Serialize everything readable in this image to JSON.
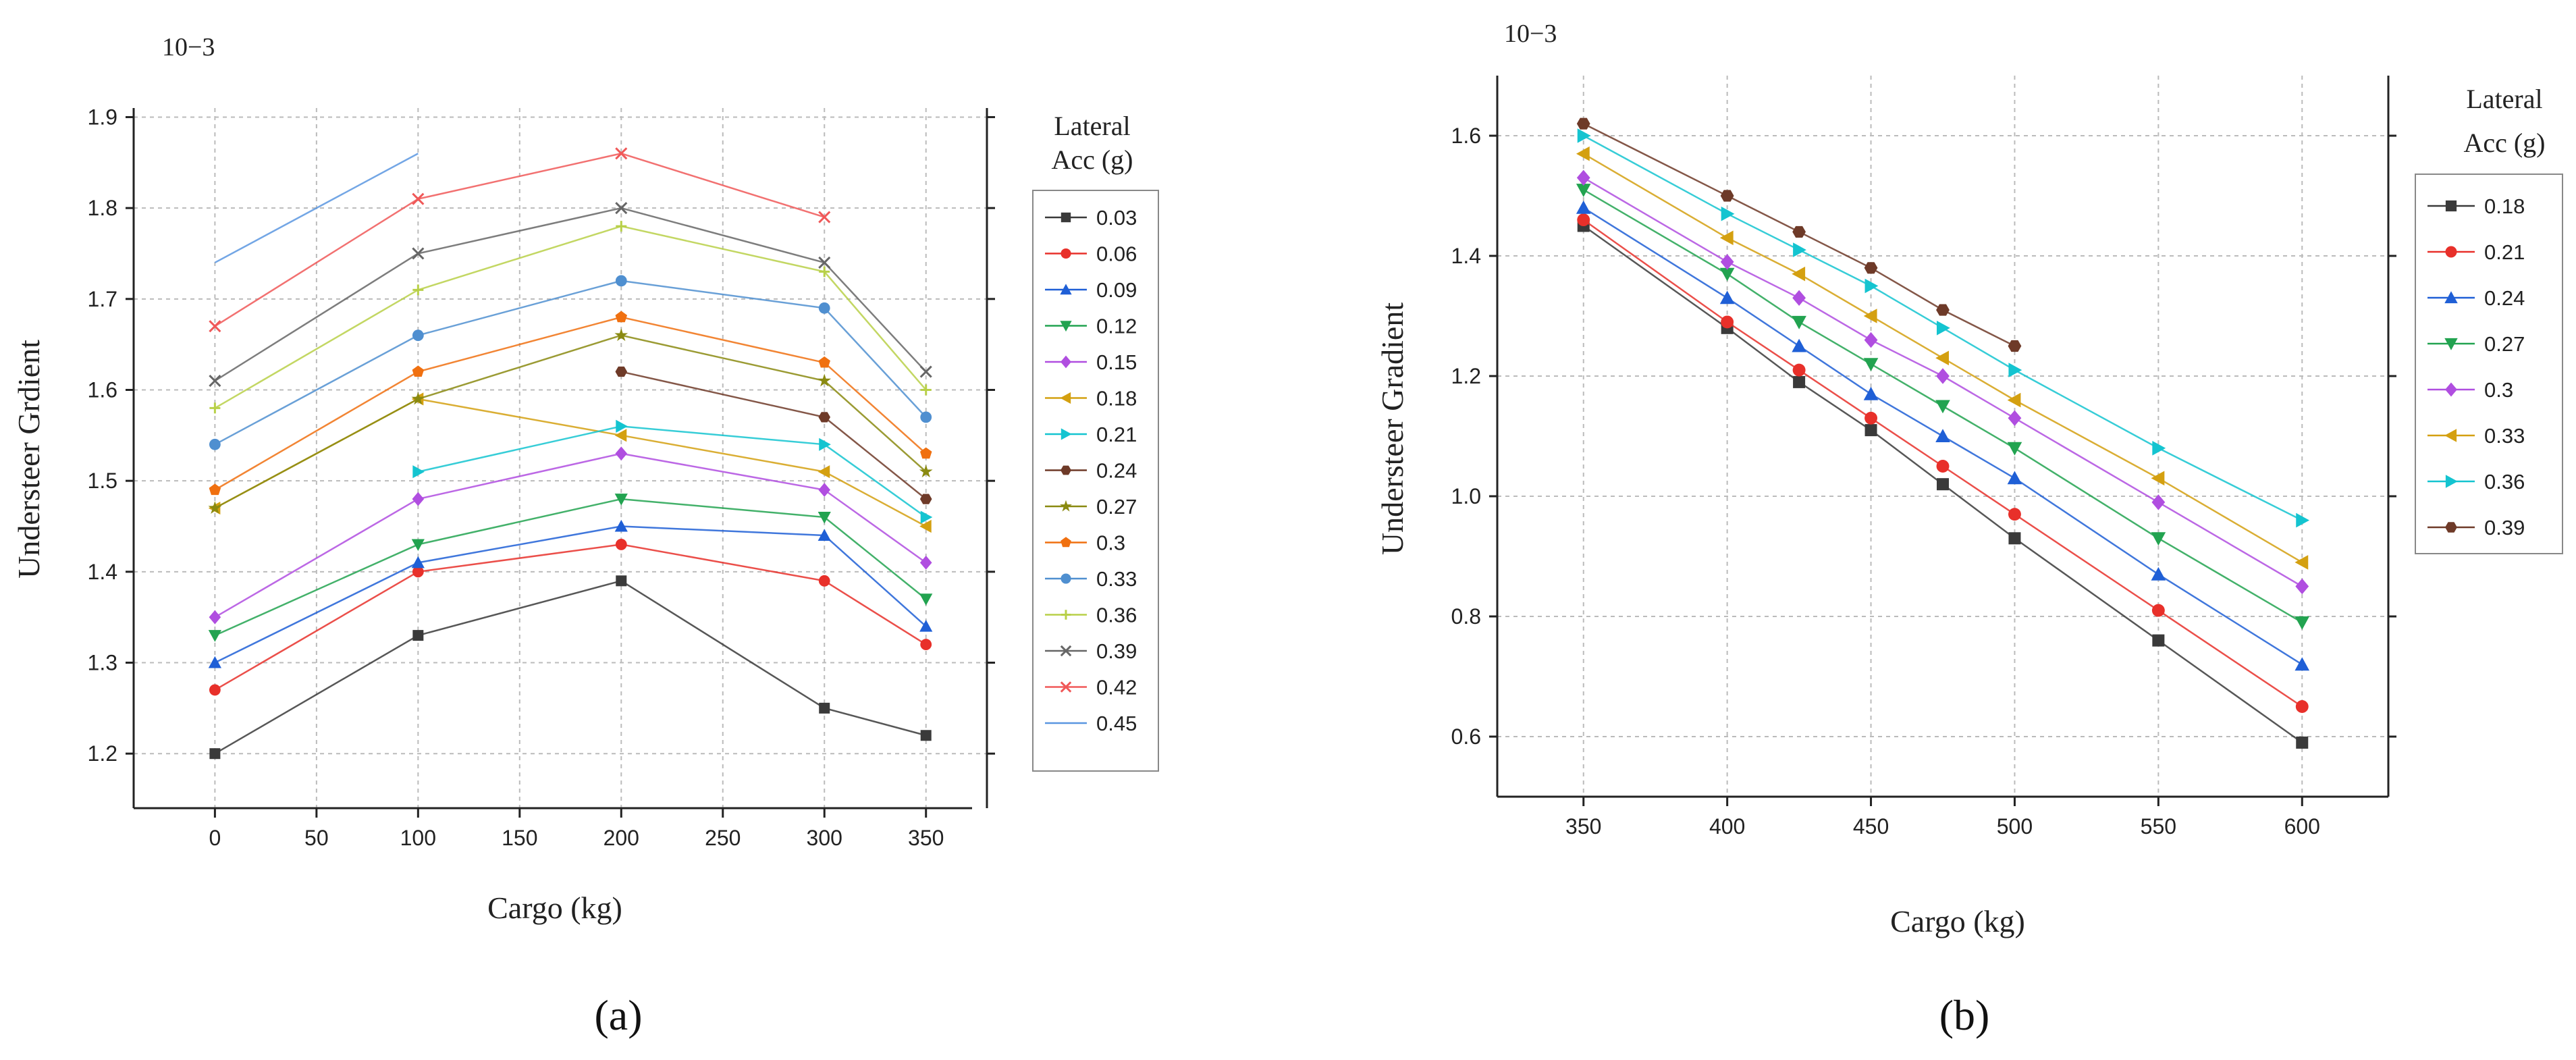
{
  "chart_data": [
    {
      "panel": "a",
      "type": "line",
      "caption": "(a)",
      "xlabel": "Cargo (kg)",
      "ylabel": "Understeer Grdient",
      "exponent_label": "10−3",
      "x_ticks": [
        "0",
        "50",
        "100",
        "150",
        "200",
        "250",
        "300",
        "350"
      ],
      "y_ticks": [
        "1.2",
        "1.3",
        "1.4",
        "1.5",
        "1.6",
        "1.7",
        "1.8",
        "1.9"
      ],
      "xlim": [
        -40,
        380
      ],
      "ylim": [
        1.14,
        1.91
      ],
      "grid": true,
      "legend_title_lines": [
        "Lateral",
        "Acc (g)"
      ],
      "legend_position": "right",
      "series": [
        {
          "name": "0.03",
          "color": "#3a3a3a",
          "marker": "square",
          "x": [
            0,
            100,
            200,
            300,
            350
          ],
          "values": [
            1.2,
            1.33,
            1.39,
            1.25,
            1.22
          ]
        },
        {
          "name": "0.06",
          "color": "#e8302a",
          "marker": "circle",
          "x": [
            0,
            100,
            200,
            300,
            350
          ],
          "values": [
            1.27,
            1.4,
            1.43,
            1.39,
            1.32
          ]
        },
        {
          "name": "0.09",
          "color": "#1f5fd6",
          "marker": "triangle-up",
          "x": [
            0,
            100,
            200,
            300,
            350
          ],
          "values": [
            1.3,
            1.41,
            1.45,
            1.44,
            1.34
          ]
        },
        {
          "name": "0.12",
          "color": "#22a350",
          "marker": "triangle-down",
          "x": [
            0,
            100,
            200,
            300,
            350
          ],
          "values": [
            1.33,
            1.43,
            1.48,
            1.46,
            1.37
          ]
        },
        {
          "name": "0.15",
          "color": "#b04ee0",
          "marker": "diamond",
          "x": [
            0,
            100,
            200,
            300,
            350
          ],
          "values": [
            1.35,
            1.48,
            1.53,
            1.49,
            1.41
          ]
        },
        {
          "name": "0.18",
          "color": "#d4a010",
          "marker": "triangle-left",
          "x": [
            0,
            100,
            200,
            300,
            350
          ],
          "values": [
            1.47,
            1.59,
            1.55,
            1.51,
            1.45
          ]
        },
        {
          "name": "0.21",
          "color": "#14c4d0",
          "marker": "triangle-right",
          "x": [
            100,
            200,
            300,
            350
          ],
          "values": [
            1.51,
            1.56,
            1.54,
            1.46
          ]
        },
        {
          "name": "0.24",
          "color": "#6e3a28",
          "marker": "hexagon",
          "x": [
            200,
            300,
            350
          ],
          "values": [
            1.62,
            1.57,
            1.48
          ]
        },
        {
          "name": "0.27",
          "color": "#8a8a10",
          "marker": "star",
          "x": [
            0,
            100,
            200,
            300,
            350
          ],
          "values": [
            1.47,
            1.59,
            1.66,
            1.61,
            1.51
          ]
        },
        {
          "name": "0.3",
          "color": "#f07010",
          "marker": "pentagon",
          "x": [
            0,
            100,
            200,
            300,
            350
          ],
          "values": [
            1.49,
            1.62,
            1.68,
            1.63,
            1.53
          ]
        },
        {
          "name": "0.33",
          "color": "#4f8fd0",
          "marker": "sphere",
          "x": [
            0,
            100,
            200,
            300,
            350
          ],
          "values": [
            1.54,
            1.66,
            1.72,
            1.69,
            1.57
          ]
        },
        {
          "name": "0.36",
          "color": "#b8d048",
          "marker": "plus",
          "x": [
            0,
            100,
            200,
            300,
            350
          ],
          "values": [
            1.58,
            1.71,
            1.78,
            1.73,
            1.6
          ]
        },
        {
          "name": "0.39",
          "color": "#666666",
          "marker": "x",
          "x": [
            0,
            100,
            200,
            300,
            350
          ],
          "values": [
            1.61,
            1.75,
            1.8,
            1.74,
            1.62
          ]
        },
        {
          "name": "0.42",
          "color": "#f05858",
          "marker": "x",
          "x": [
            0,
            100,
            200,
            300
          ],
          "values": [
            1.67,
            1.81,
            1.86,
            1.79
          ]
        },
        {
          "name": "0.45",
          "color": "#5a96e0",
          "marker": "none",
          "x": [
            0,
            100
          ],
          "values": [
            1.74,
            1.86
          ]
        }
      ]
    },
    {
      "panel": "b",
      "type": "line",
      "caption": "(b)",
      "xlabel": "Cargo (kg)",
      "ylabel": "Understeer Gradient",
      "exponent_label": "10−3",
      "x_ticks": [
        "350",
        "400",
        "450",
        "500",
        "550",
        "600"
      ],
      "y_ticks": [
        "0.6",
        "0.8",
        "1.0",
        "1.2",
        "1.4",
        "1.6"
      ],
      "xlim": [
        320,
        630
      ],
      "ylim": [
        0.5,
        1.7
      ],
      "grid": true,
      "legend_title_lines": [
        "Lateral",
        "Acc (g)"
      ],
      "legend_position": "right",
      "series": [
        {
          "name": "0.18",
          "color": "#3a3a3a",
          "marker": "square",
          "x": [
            350,
            400,
            425,
            450,
            475,
            500,
            550,
            600
          ],
          "values": [
            1.45,
            1.28,
            1.19,
            1.11,
            1.02,
            0.93,
            0.76,
            0.59
          ]
        },
        {
          "name": "0.21",
          "color": "#e8302a",
          "marker": "circle",
          "x": [
            350,
            400,
            425,
            450,
            475,
            500,
            550,
            600
          ],
          "values": [
            1.46,
            1.29,
            1.21,
            1.13,
            1.05,
            0.97,
            0.81,
            0.65
          ]
        },
        {
          "name": "0.24",
          "color": "#1f5fd6",
          "marker": "triangle-up",
          "x": [
            350,
            400,
            425,
            450,
            475,
            500,
            550,
            600
          ],
          "values": [
            1.48,
            1.33,
            1.25,
            1.17,
            1.1,
            1.03,
            0.87,
            0.72
          ]
        },
        {
          "name": "0.27",
          "color": "#22a350",
          "marker": "triangle-down",
          "x": [
            350,
            400,
            425,
            450,
            475,
            500,
            550,
            600
          ],
          "values": [
            1.51,
            1.37,
            1.29,
            1.22,
            1.15,
            1.08,
            0.93,
            0.79
          ]
        },
        {
          "name": "0.3",
          "color": "#b04ee0",
          "marker": "diamond",
          "x": [
            350,
            400,
            425,
            450,
            475,
            500,
            550,
            600
          ],
          "values": [
            1.53,
            1.39,
            1.33,
            1.26,
            1.2,
            1.13,
            0.99,
            0.85
          ]
        },
        {
          "name": "0.33",
          "color": "#d4a010",
          "marker": "triangle-left",
          "x": [
            350,
            400,
            425,
            450,
            475,
            500,
            550,
            600
          ],
          "values": [
            1.57,
            1.43,
            1.37,
            1.3,
            1.23,
            1.16,
            1.03,
            0.89
          ]
        },
        {
          "name": "0.36",
          "color": "#14c4d0",
          "marker": "triangle-right",
          "x": [
            350,
            400,
            425,
            450,
            475,
            500,
            550,
            600
          ],
          "values": [
            1.6,
            1.47,
            1.41,
            1.35,
            1.28,
            1.21,
            1.08,
            0.96
          ]
        },
        {
          "name": "0.39",
          "color": "#6e3a28",
          "marker": "hexagon",
          "x": [
            350,
            400,
            425,
            450,
            475,
            500
          ],
          "values": [
            1.62,
            1.5,
            1.44,
            1.38,
            1.31,
            1.25
          ]
        }
      ]
    }
  ]
}
